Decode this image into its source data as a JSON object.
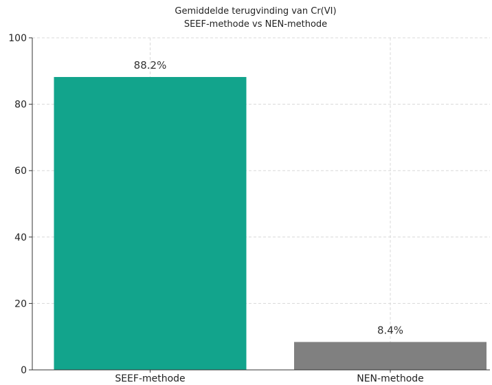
{
  "chart_data": {
    "type": "bar",
    "title": "Gemiddelde terugvinding van Cr(VI)",
    "subtitle": "SEEF-methode vs NEN-methode",
    "categories": [
      "SEEF-methode",
      "NEN-methode"
    ],
    "values": [
      88.2,
      8.4
    ],
    "value_labels": [
      "88.2%",
      "8.4%"
    ],
    "colors": [
      "#12a48c",
      "#808080"
    ],
    "xlabel": "",
    "ylabel": "",
    "ylim": [
      0,
      100
    ],
    "yticks": [
      0,
      20,
      40,
      60,
      80,
      100
    ],
    "ytick_labels": [
      "0",
      "20",
      "40",
      "60",
      "80",
      "100"
    ],
    "grid": true,
    "legend": "none"
  }
}
